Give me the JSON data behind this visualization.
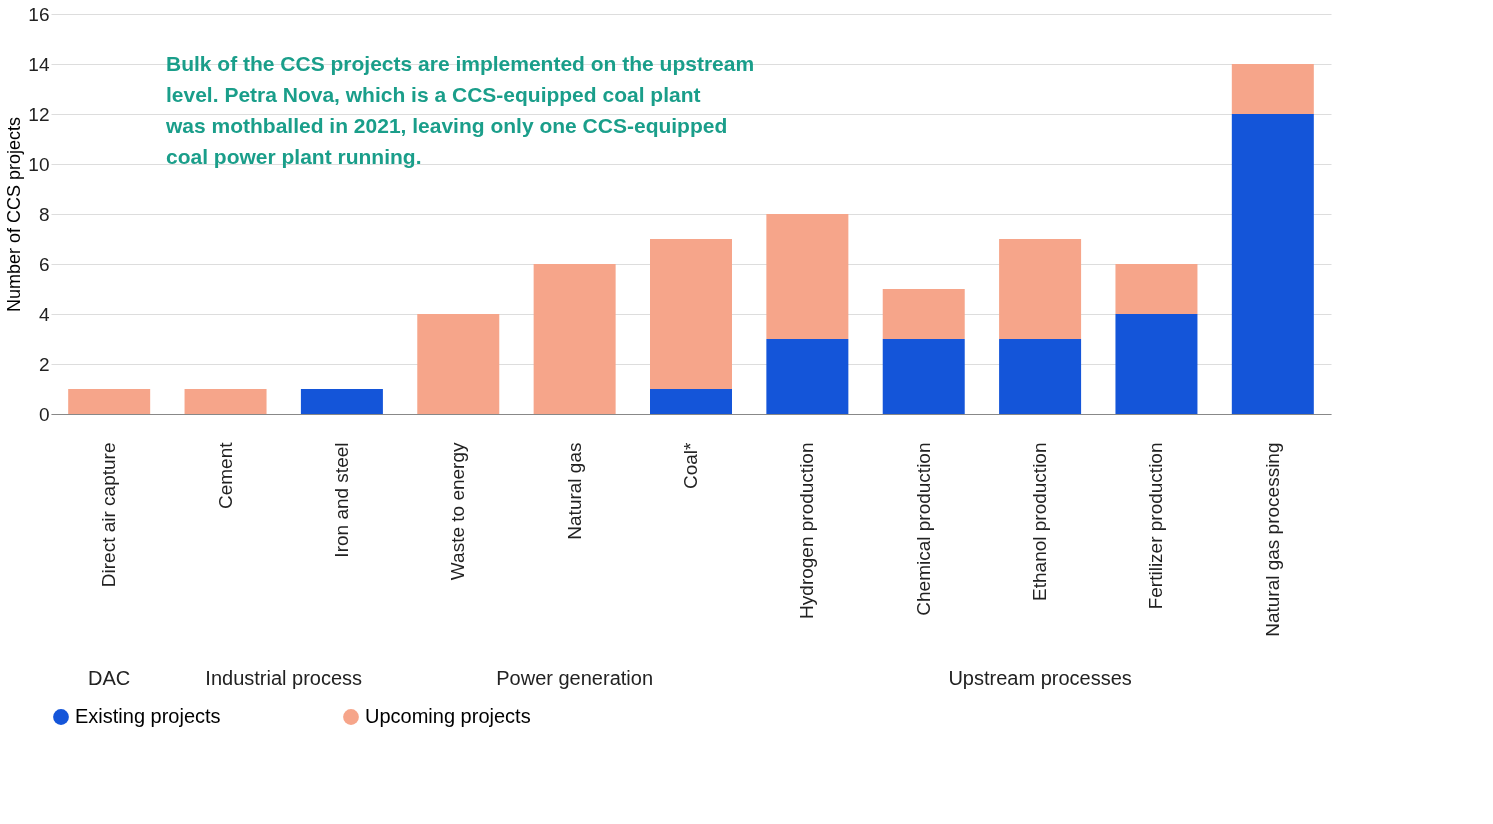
{
  "chart_data": {
    "type": "bar",
    "stacked": true,
    "ylabel": "Number of CCS projects",
    "categories": [
      "Direct air capture",
      "Cement",
      "Iron and steel",
      "Waste to energy",
      "Natural gas",
      "Coal*",
      "Hydrogen production",
      "Chemical production",
      "Ethanol production",
      "Fertilizer production",
      "Natural gas processing"
    ],
    "series": [
      {
        "name": "Existing projects",
        "color": "#1455d9",
        "values": [
          0,
          0,
          1,
          0,
          0,
          1,
          3,
          3,
          3,
          4,
          12
        ]
      },
      {
        "name": "Upcoming projects",
        "color": "#f6a58a",
        "values": [
          1,
          1,
          0,
          4,
          6,
          6,
          5,
          2,
          4,
          2,
          2
        ]
      }
    ],
    "ylim": [
      0,
      16
    ],
    "yticks": [
      0,
      2,
      4,
      6,
      8,
      10,
      12,
      14,
      16
    ],
    "grid": "y",
    "legend": "bottom",
    "annotations": [
      "Bulk of the CCS projects are implemented on the upstream level. Petra Nova, which is a CCS-equipped coal plant was mothballed in 2021, leaving only one CCS-equipped coal power plant running.",
      "DAC",
      "Industrial process",
      "Power generation",
      "Upstream processes"
    ]
  }
}
